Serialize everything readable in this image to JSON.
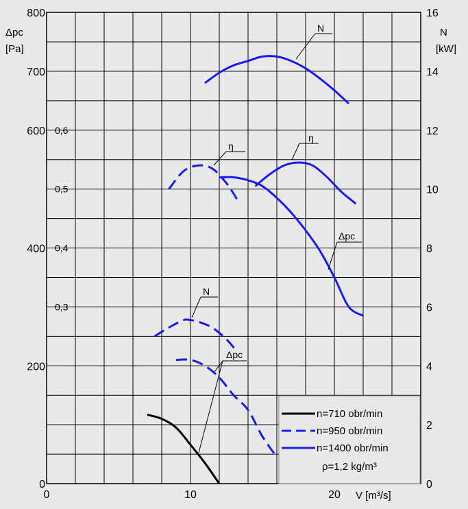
{
  "chart_data": {
    "type": "line",
    "xlabel": "V [m³/s]",
    "ylabel_left": [
      "Δpc",
      "[Pa]"
    ],
    "ylabel_right": [
      "N",
      "[kW]"
    ],
    "xlim": [
      0,
      26
    ],
    "ylim_left": [
      0,
      800
    ],
    "ylim_right": [
      0,
      16
    ],
    "x_ticks": [
      "0",
      "10",
      "20"
    ],
    "x_tick_values": [
      0,
      10,
      20
    ],
    "y_left_ticks": [
      "0",
      "200",
      "400",
      "600",
      "700",
      "800"
    ],
    "y_left_tick_values": [
      0,
      200,
      400,
      600,
      700,
      800
    ],
    "y_right_ticks": [
      "0",
      "2",
      "4",
      "6",
      "8",
      "10",
      "12",
      "14",
      "16"
    ],
    "y_right_tick_values": [
      0,
      2,
      4,
      6,
      8,
      10,
      12,
      14,
      16
    ],
    "eff_ticks": [
      "0,3",
      "0,4",
      "0,5",
      "0,6"
    ],
    "eff_tick_left_values": [
      300,
      400,
      500,
      600
    ],
    "grid": true,
    "legend": {
      "position": "bottom-right",
      "entries": [
        "n=710 obr/min",
        "n=950 obr/min",
        "n=1400 obr/min"
      ],
      "note": "ρ=1,2 kg/m³"
    },
    "annotations": [
      "N",
      "η",
      "η",
      "Δpc",
      "N",
      "Δpc"
    ],
    "series": [
      {
        "speed": "n=710 obr/min",
        "curve": "Δpc",
        "style": "solid",
        "color": "#000000",
        "x": [
          7,
          8,
          9,
          10,
          11,
          12
        ],
        "y": [
          117,
          110,
          95,
          66,
          35,
          0
        ]
      },
      {
        "speed": "n=950 obr/min",
        "curve": "N",
        "style": "dashed",
        "color": "#1a1aff",
        "x": [
          7.5,
          8.5,
          9.5,
          10,
          10.5,
          11.5,
          12.5,
          13.2
        ],
        "y": [
          5.0,
          5.3,
          5.55,
          5.55,
          5.5,
          5.3,
          4.9,
          4.5
        ]
      },
      {
        "speed": "n=950 obr/min",
        "curve": "η",
        "style": "dashed",
        "color": "#1a1aff",
        "x": [
          8.5,
          9.5,
          10.5,
          11.5,
          12.5,
          13.3
        ],
        "y": [
          0.5,
          0.53,
          0.54,
          0.535,
          0.51,
          0.48
        ]
      },
      {
        "speed": "n=950 obr/min",
        "curve": "Δpc",
        "style": "dashed",
        "color": "#1a1aff",
        "x": [
          9,
          10,
          11,
          12,
          13,
          14,
          15,
          16
        ],
        "y": [
          210,
          210,
          200,
          180,
          150,
          125,
          80,
          45
        ]
      },
      {
        "speed": "n=1400 obr/min",
        "curve": "N",
        "style": "solid",
        "color": "#1a1aff",
        "x": [
          11,
          12,
          13,
          14,
          15,
          16,
          17,
          18,
          19,
          20,
          21
        ],
        "y": [
          13.6,
          13.95,
          14.2,
          14.35,
          14.5,
          14.5,
          14.35,
          14.1,
          13.75,
          13.35,
          12.9
        ]
      },
      {
        "speed": "n=1400 obr/min",
        "curve": "η",
        "style": "solid",
        "color": "#1a1aff",
        "x": [
          14.5,
          15.5,
          16.5,
          17.5,
          18.5,
          19.5,
          20.5,
          21.5
        ],
        "y": [
          0.505,
          0.525,
          0.54,
          0.545,
          0.54,
          0.52,
          0.495,
          0.475
        ]
      },
      {
        "speed": "n=1400 obr/min",
        "curve": "Δpc",
        "style": "solid",
        "color": "#1a1aff",
        "x": [
          12,
          13,
          14,
          15,
          16,
          17,
          18,
          19,
          20,
          21,
          22
        ],
        "y": [
          520,
          520,
          515,
          505,
          485,
          460,
          430,
          395,
          350,
          300,
          285
        ]
      }
    ],
    "annotation_text": {
      "N_top": "N",
      "eta_950": "η",
      "eta_1400": "η",
      "dpc_1400": "Δpc",
      "N_950": "N",
      "dpc_low": "Δpc"
    }
  }
}
